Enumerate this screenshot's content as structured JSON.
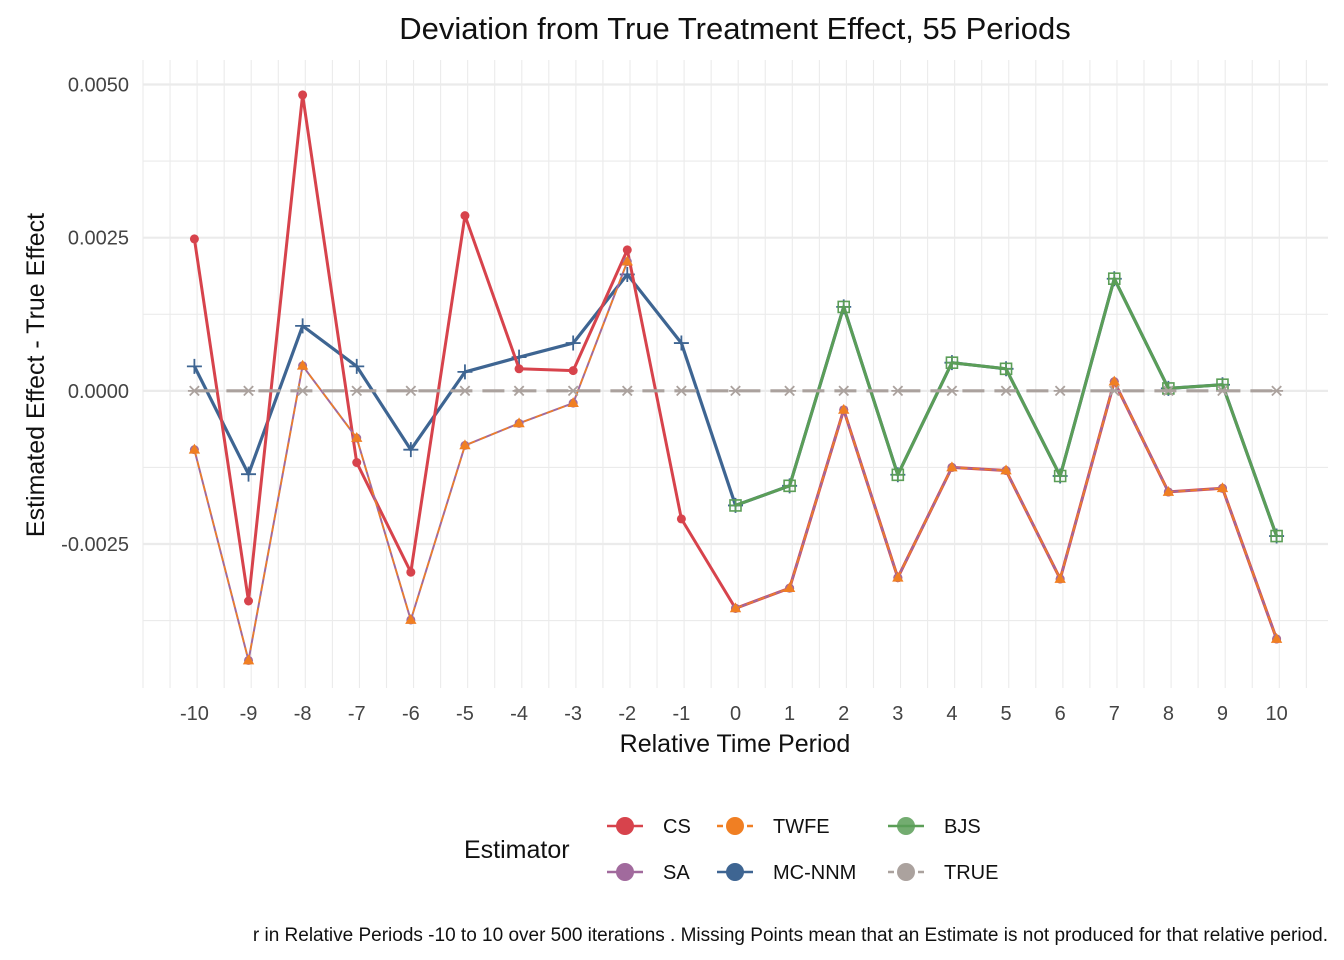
{
  "chart_data": {
    "type": "line",
    "title": "Deviation from True Treatment Effect, 55 Periods",
    "xlabel": "Relative Time Period",
    "ylabel": "Estimated Effect - True Effect",
    "x": [
      -10,
      -9,
      -8,
      -7,
      -6,
      -5,
      -4,
      -3,
      -2,
      -1,
      0,
      1,
      2,
      3,
      4,
      5,
      6,
      7,
      8,
      9,
      10
    ],
    "x_tick_labels": [
      "-10",
      "-9",
      "-8",
      "-7",
      "-6",
      "-5",
      "-4",
      "-3",
      "-2",
      "-1",
      "0",
      "1",
      "2",
      "3",
      "4",
      "5",
      "6",
      "7",
      "8",
      "9",
      "10"
    ],
    "xlim": [
      -10.95,
      10.95
    ],
    "ylim": [
      -0.00485,
      0.0054
    ],
    "y_ticks": [
      0.005,
      0.0025,
      0.0,
      -0.0025
    ],
    "y_tick_labels": [
      "0.0050",
      "0.0025",
      "0.0000",
      "-0.0025"
    ],
    "grid": true,
    "legend_title": "Estimator",
    "legend_position": "bottom",
    "caption": "r in Relative Periods -10 to 10 over 500 iterations . Missing Points mean that an Estimate is not produced for that relative period.",
    "series": [
      {
        "name": "CS",
        "color": "#d7434c",
        "marker": "circle",
        "dash": "solid",
        "values": [
          0.00248,
          -0.00343,
          0.00483,
          -0.00117,
          -0.00296,
          0.00286,
          0.00036,
          0.00033,
          0.0023,
          -0.00209,
          -0.00355,
          -0.00322,
          -0.00031,
          -0.00305,
          -0.00125,
          -0.0013,
          -0.00307,
          0.00015,
          -0.00165,
          -0.00159,
          -0.00405
        ]
      },
      {
        "name": "SA",
        "color": "#a16a9d",
        "marker": "circle",
        "dash": "solid",
        "values": [
          -0.00096,
          -0.0044,
          0.00041,
          -0.00077,
          -0.00374,
          -0.00089,
          -0.00053,
          -0.0002,
          0.00211,
          null,
          -0.00355,
          -0.00322,
          -0.00031,
          -0.00305,
          -0.00125,
          -0.0013,
          -0.00307,
          0.00015,
          -0.00165,
          -0.00159,
          -0.00405
        ]
      },
      {
        "name": "TWFE",
        "color": "#f07f23",
        "marker": "triangle",
        "dash": "dashed",
        "values": [
          -0.00096,
          -0.0044,
          0.00041,
          -0.00077,
          -0.00374,
          -0.00089,
          -0.00053,
          -0.0002,
          0.00211,
          null,
          -0.00355,
          -0.00322,
          -0.00031,
          -0.00305,
          -0.00125,
          -0.0013,
          -0.00307,
          0.00015,
          -0.00165,
          -0.00159,
          -0.00405
        ]
      },
      {
        "name": "MC-NNM",
        "color": "#3e6592",
        "marker": "plus",
        "dash": "solid",
        "values": [
          0.0004,
          -0.00136,
          0.00106,
          0.0004,
          -0.00096,
          0.00031,
          0.00055,
          0.00078,
          0.0019,
          0.00078,
          -0.00187,
          -0.00155,
          0.00137,
          -0.00137,
          0.00046,
          0.00036,
          -0.00139,
          0.00183,
          4e-05,
          0.0001,
          -0.00237
        ]
      },
      {
        "name": "BJS",
        "color": "#5b9e57",
        "marker": "square-plus",
        "dash": "solid",
        "values": [
          null,
          null,
          null,
          null,
          null,
          null,
          null,
          null,
          null,
          null,
          -0.00187,
          -0.00155,
          0.00137,
          -0.00137,
          0.00046,
          0.00036,
          -0.00139,
          0.00183,
          4e-05,
          0.0001,
          -0.00237
        ]
      },
      {
        "name": "TRUE",
        "color": "#aba29e",
        "marker": "asterisk",
        "dash": "longdash",
        "values": [
          0,
          0,
          0,
          0,
          0,
          0,
          0,
          0,
          0,
          0,
          0,
          0,
          0,
          0,
          0,
          0,
          0,
          0,
          0,
          0,
          0
        ]
      }
    ]
  }
}
